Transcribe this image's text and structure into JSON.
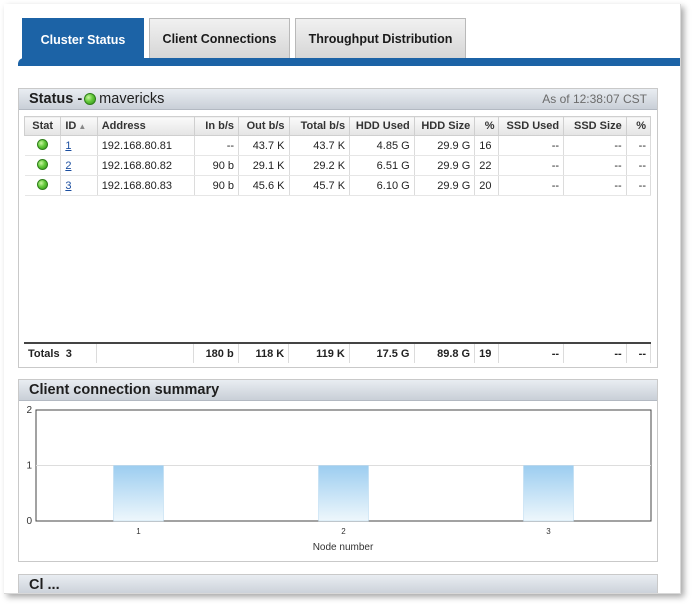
{
  "tabs": [
    {
      "label": "Cluster Status",
      "active": true
    },
    {
      "label": "Client Connections",
      "active": false
    },
    {
      "label": "Throughput Distribution",
      "active": false
    }
  ],
  "status_panel": {
    "title": "Status - ",
    "cluster_name": "mavericks",
    "as_of": "As of 12:38:07 CST",
    "columns": [
      "Stat",
      "ID",
      "Address",
      "In b/s",
      "Out b/s",
      "Total b/s",
      "HDD Used",
      "HDD Size",
      "%",
      "SSD Used",
      "SSD Size",
      "%"
    ],
    "rows": [
      {
        "id": "1",
        "address": "192.168.80.81",
        "in": "--",
        "out": "43.7 K",
        "total": "43.7 K",
        "hdd_used": "4.85 G",
        "hdd_size": "29.9 G",
        "hdd_pct": "16",
        "ssd_used": "--",
        "ssd_size": "--",
        "ssd_pct": "--"
      },
      {
        "id": "2",
        "address": "192.168.80.82",
        "in": "90 b",
        "out": "29.1 K",
        "total": "29.2 K",
        "hdd_used": "6.51 G",
        "hdd_size": "29.9 G",
        "hdd_pct": "22",
        "ssd_used": "--",
        "ssd_size": "--",
        "ssd_pct": "--"
      },
      {
        "id": "3",
        "address": "192.168.80.83",
        "in": "90 b",
        "out": "45.6 K",
        "total": "45.7 K",
        "hdd_used": "6.10 G",
        "hdd_size": "29.9 G",
        "hdd_pct": "20",
        "ssd_used": "--",
        "ssd_size": "--",
        "ssd_pct": "--"
      }
    ],
    "totals": {
      "label": "Totals",
      "count": "3",
      "in": "180 b",
      "out": "118 K",
      "total": "119 K",
      "hdd_used": "17.5 G",
      "hdd_size": "89.8 G",
      "hdd_pct": "19",
      "ssd_used": "--",
      "ssd_size": "--",
      "ssd_pct": "--"
    }
  },
  "client_panel": {
    "title": "Client connection summary"
  },
  "next_panel": {
    "title": "Cl   ...   "
  },
  "colors": {
    "accent": "#1c63a6",
    "status_ok": "#4cb52a",
    "bar_top": "#9ccdf0",
    "bar_bottom": "#e9f4fb"
  },
  "chart_data": {
    "type": "bar",
    "categories": [
      "1",
      "2",
      "3"
    ],
    "values": [
      1,
      1,
      1
    ],
    "title": "",
    "xlabel": "Node number",
    "ylabel": "",
    "ylim": [
      0,
      2
    ],
    "yticks": [
      "0",
      "1",
      "2"
    ],
    "grid": true
  }
}
